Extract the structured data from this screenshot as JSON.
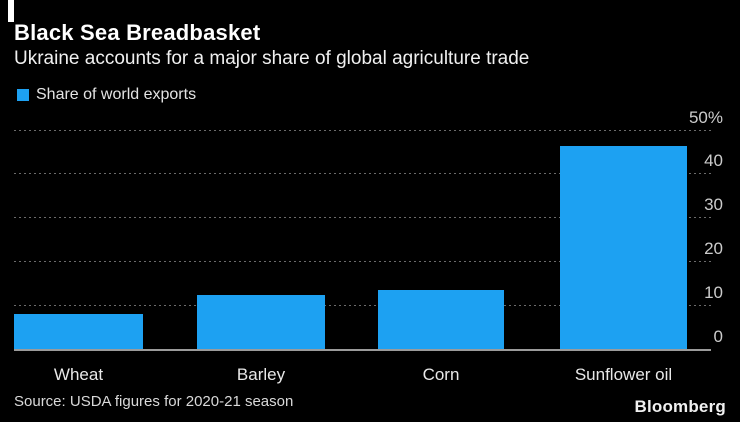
{
  "header": {
    "title": "Black Sea Breadbasket",
    "subtitle": "Ukraine accounts for a major share of global agriculture trade"
  },
  "legend": {
    "label": "Share of world exports",
    "swatch_color": "#1da1f2"
  },
  "chart_data": {
    "type": "bar",
    "title": "Black Sea Breadbasket",
    "subtitle": "Ukraine accounts for a major share of global agriculture trade",
    "series_name": "Share of world exports",
    "categories": [
      "Wheat",
      "Barley",
      "Corn",
      "Sunflower oil"
    ],
    "values": [
      8,
      12.4,
      13.4,
      46.3
    ],
    "unit": "%",
    "xlabel": "",
    "ylabel": "",
    "ylim": [
      0,
      50
    ],
    "yticks": [
      0,
      10,
      20,
      30,
      40,
      50
    ],
    "ytick_labels": [
      "0",
      "10",
      "20",
      "30",
      "40",
      "50%"
    ],
    "grid": "horizontal-dotted",
    "legend_position": "top-left",
    "bar_color": "#1da1f2",
    "background_color": "#000000"
  },
  "footer": {
    "source": "Source: USDA figures for 2020-21 season",
    "brand": "Bloomberg"
  },
  "colors": {
    "background": "#000000",
    "bar": "#1da1f2",
    "gridline": "#6b6b6b",
    "axis_line": "#9b9b9b",
    "title_text": "#ffffff",
    "tick_text": "#cccccc"
  }
}
